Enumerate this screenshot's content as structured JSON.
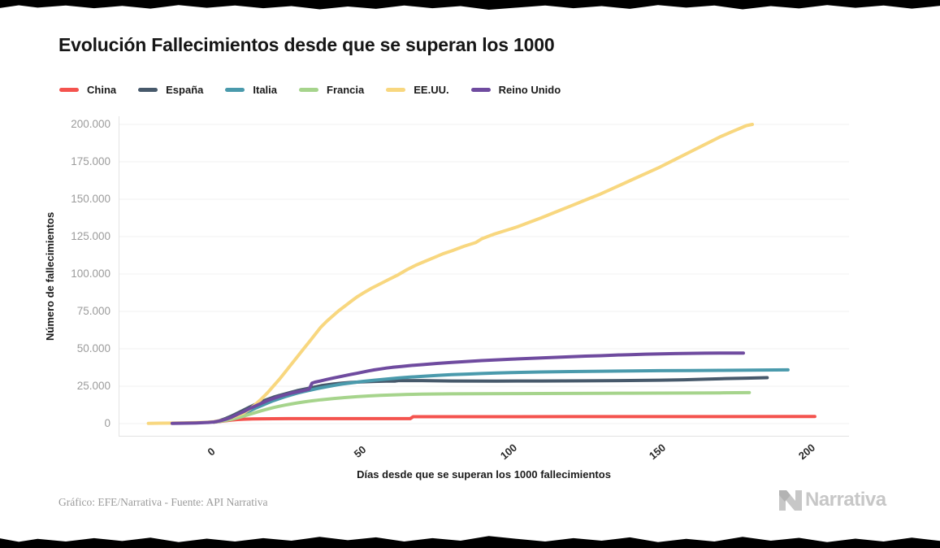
{
  "title": "Evolución Fallecimientos desde que se superan los 1000",
  "credit": "Gráfico: EFE/Narrativa - Fuente: API Narrativa",
  "watermark": "Narrativa",
  "chart_data": {
    "type": "line",
    "title": "Evolución Fallecimientos desde que se superan los 1000",
    "xlabel": "Días desde que se superan los 1000 fallecimientos",
    "ylabel": "Número de fallecimientos",
    "xlim": [
      -32,
      213.5
    ],
    "ylim": [
      0,
      200000
    ],
    "grid": "horizontal-only",
    "legend_position": "top",
    "grid_color": "#f0f0f0",
    "axis_line_color": "#e3e3e3",
    "x_ticks": [
      {
        "value": 0,
        "label": "0"
      },
      {
        "value": 50,
        "label": "50"
      },
      {
        "value": 100,
        "label": "100"
      },
      {
        "value": 150,
        "label": "150"
      },
      {
        "value": 200,
        "label": "200"
      }
    ],
    "y_ticks": [
      {
        "value": 0,
        "label": "0"
      },
      {
        "value": 25000,
        "label": "25.000"
      },
      {
        "value": 50000,
        "label": "50.000"
      },
      {
        "value": 75000,
        "label": "75.000"
      },
      {
        "value": 100000,
        "label": "100.000"
      },
      {
        "value": 125000,
        "label": "125.000"
      },
      {
        "value": 150000,
        "label": "150.000"
      },
      {
        "value": 175000,
        "label": "175.000"
      },
      {
        "value": 200000,
        "label": "200.000"
      }
    ],
    "series": [
      {
        "name": "China",
        "color": "#f4534e",
        "points": [
          [
            0,
            1000
          ],
          [
            2,
            1400
          ],
          [
            4,
            1900
          ],
          [
            6,
            2400
          ],
          [
            8,
            2700
          ],
          [
            10,
            2950
          ],
          [
            13,
            3120
          ],
          [
            16,
            3220
          ],
          [
            20,
            3280
          ],
          [
            25,
            3310
          ],
          [
            30,
            3320
          ],
          [
            40,
            3330
          ],
          [
            55,
            3335
          ],
          [
            66,
            3340
          ],
          [
            67,
            4630
          ],
          [
            90,
            4640
          ],
          [
            120,
            4660
          ],
          [
            160,
            4700
          ],
          [
            202,
            4740
          ]
        ]
      },
      {
        "name": "España",
        "color": "#47596b",
        "points": [
          [
            0,
            1100
          ],
          [
            2,
            2000
          ],
          [
            4,
            3400
          ],
          [
            6,
            5100
          ],
          [
            8,
            7000
          ],
          [
            10,
            9000
          ],
          [
            12,
            11000
          ],
          [
            14,
            12900
          ],
          [
            16,
            14700
          ],
          [
            18,
            16200
          ],
          [
            20,
            17600
          ],
          [
            22,
            18800
          ],
          [
            24,
            19900
          ],
          [
            26,
            21000
          ],
          [
            28,
            22000
          ],
          [
            30,
            22900
          ],
          [
            32,
            23700
          ],
          [
            34,
            24500
          ],
          [
            36,
            25300
          ],
          [
            38,
            25900
          ],
          [
            40,
            26400
          ],
          [
            43,
            27000
          ],
          [
            46,
            27500
          ],
          [
            50,
            27950
          ],
          [
            54,
            28200
          ],
          [
            58,
            28350
          ],
          [
            61,
            28400
          ],
          [
            62,
            28750
          ],
          [
            70,
            28760
          ],
          [
            80,
            28500
          ],
          [
            95,
            28450
          ],
          [
            110,
            28500
          ],
          [
            125,
            28600
          ],
          [
            140,
            28800
          ],
          [
            150,
            29000
          ],
          [
            158,
            29300
          ],
          [
            165,
            29700
          ],
          [
            172,
            30100
          ],
          [
            179,
            30400
          ],
          [
            186,
            30700
          ]
        ]
      },
      {
        "name": "Italia",
        "color": "#4a9aac",
        "points": [
          [
            0,
            1000
          ],
          [
            2,
            1600
          ],
          [
            4,
            2500
          ],
          [
            6,
            3700
          ],
          [
            8,
            5200
          ],
          [
            10,
            6800
          ],
          [
            12,
            8500
          ],
          [
            14,
            10300
          ],
          [
            16,
            12000
          ],
          [
            18,
            13700
          ],
          [
            20,
            15300
          ],
          [
            22,
            16700
          ],
          [
            24,
            18000
          ],
          [
            26,
            19200
          ],
          [
            28,
            20300
          ],
          [
            30,
            21300
          ],
          [
            32,
            22200
          ],
          [
            34,
            23100
          ],
          [
            36,
            23900
          ],
          [
            38,
            24700
          ],
          [
            40,
            25400
          ],
          [
            43,
            26400
          ],
          [
            46,
            27200
          ],
          [
            50,
            28200
          ],
          [
            54,
            29000
          ],
          [
            58,
            29800
          ],
          [
            62,
            30500
          ],
          [
            66,
            31100
          ],
          [
            70,
            31600
          ],
          [
            75,
            32200
          ],
          [
            80,
            32700
          ],
          [
            85,
            33100
          ],
          [
            90,
            33500
          ],
          [
            95,
            33800
          ],
          [
            100,
            34100
          ],
          [
            110,
            34500
          ],
          [
            120,
            34800
          ],
          [
            130,
            35000
          ],
          [
            140,
            35200
          ],
          [
            150,
            35400
          ],
          [
            160,
            35500
          ],
          [
            170,
            35600
          ],
          [
            180,
            35750
          ],
          [
            193,
            35900
          ]
        ]
      },
      {
        "name": "Francia",
        "color": "#a6d48c",
        "points": [
          [
            0,
            1100
          ],
          [
            2,
            1500
          ],
          [
            4,
            2100
          ],
          [
            6,
            2900
          ],
          [
            8,
            3900
          ],
          [
            10,
            5000
          ],
          [
            12,
            6200
          ],
          [
            14,
            7400
          ],
          [
            16,
            8600
          ],
          [
            18,
            9700
          ],
          [
            20,
            10700
          ],
          [
            22,
            11600
          ],
          [
            24,
            12400
          ],
          [
            26,
            13100
          ],
          [
            28,
            13800
          ],
          [
            30,
            14400
          ],
          [
            33,
            15200
          ],
          [
            36,
            15900
          ],
          [
            40,
            16700
          ],
          [
            44,
            17400
          ],
          [
            48,
            18000
          ],
          [
            52,
            18500
          ],
          [
            56,
            18900
          ],
          [
            60,
            19200
          ],
          [
            65,
            19500
          ],
          [
            70,
            19700
          ],
          [
            80,
            19900
          ],
          [
            90,
            20000
          ],
          [
            100,
            20050
          ],
          [
            110,
            20100
          ],
          [
            120,
            20150
          ],
          [
            130,
            20250
          ],
          [
            140,
            20350
          ],
          [
            150,
            20400
          ],
          [
            160,
            20450
          ],
          [
            170,
            20550
          ],
          [
            180,
            20700
          ]
        ]
      },
      {
        "name": "EE.UU.",
        "color": "#f8d77f",
        "points": [
          [
            -22,
            150
          ],
          [
            -18,
            250
          ],
          [
            -14,
            350
          ],
          [
            -10,
            500
          ],
          [
            -6,
            700
          ],
          [
            -2,
            950
          ],
          [
            0,
            1300
          ],
          [
            2,
            1900
          ],
          [
            4,
            2800
          ],
          [
            6,
            4000
          ],
          [
            8,
            5500
          ],
          [
            10,
            7100
          ],
          [
            12,
            9600
          ],
          [
            14,
            12800
          ],
          [
            16,
            16500
          ],
          [
            18,
            20500
          ],
          [
            20,
            25000
          ],
          [
            22,
            29500
          ],
          [
            24,
            34500
          ],
          [
            26,
            39500
          ],
          [
            28,
            44500
          ],
          [
            30,
            49500
          ],
          [
            32,
            54500
          ],
          [
            34,
            59500
          ],
          [
            36,
            64500
          ],
          [
            38,
            68500
          ],
          [
            40,
            72000
          ],
          [
            42,
            75500
          ],
          [
            44,
            78500
          ],
          [
            46,
            81500
          ],
          [
            48,
            84500
          ],
          [
            50,
            87000
          ],
          [
            53,
            90500
          ],
          [
            56,
            93500
          ],
          [
            59,
            96500
          ],
          [
            62,
            99500
          ],
          [
            65,
            103000
          ],
          [
            68,
            106000
          ],
          [
            71,
            108500
          ],
          [
            74,
            111000
          ],
          [
            77,
            113500
          ],
          [
            80,
            115500
          ],
          [
            84,
            118500
          ],
          [
            88,
            121000
          ],
          [
            90,
            123500
          ],
          [
            94,
            126500
          ],
          [
            98,
            129000
          ],
          [
            102,
            131500
          ],
          [
            106,
            134500
          ],
          [
            110,
            137500
          ],
          [
            115,
            141500
          ],
          [
            120,
            145500
          ],
          [
            125,
            149500
          ],
          [
            130,
            153500
          ],
          [
            135,
            158000
          ],
          [
            140,
            162500
          ],
          [
            145,
            167000
          ],
          [
            150,
            171500
          ],
          [
            155,
            176500
          ],
          [
            160,
            181500
          ],
          [
            165,
            186500
          ],
          [
            170,
            191500
          ],
          [
            174,
            195000
          ],
          [
            177,
            197500
          ],
          [
            179,
            199200
          ],
          [
            181,
            200000
          ]
        ]
      },
      {
        "name": "Reino Unido",
        "color": "#6f4b9f",
        "points": [
          [
            -14,
            150
          ],
          [
            -10,
            250
          ],
          [
            -6,
            450
          ],
          [
            -2,
            750
          ],
          [
            0,
            1100
          ],
          [
            2,
            1800
          ],
          [
            4,
            2900
          ],
          [
            6,
            4300
          ],
          [
            8,
            6200
          ],
          [
            10,
            8000
          ],
          [
            12,
            10000
          ],
          [
            14,
            11800
          ],
          [
            16,
            13600
          ],
          [
            18,
            15300
          ],
          [
            20,
            16800
          ],
          [
            22,
            18100
          ],
          [
            24,
            19300
          ],
          [
            26,
            20300
          ],
          [
            28,
            21200
          ],
          [
            30,
            22000
          ],
          [
            32,
            23000
          ],
          [
            33,
            27000
          ],
          [
            34,
            27700
          ],
          [
            36,
            28600
          ],
          [
            38,
            29500
          ],
          [
            40,
            30400
          ],
          [
            42,
            31200
          ],
          [
            44,
            32000
          ],
          [
            46,
            32800
          ],
          [
            48,
            33600
          ],
          [
            50,
            34400
          ],
          [
            52,
            35200
          ],
          [
            54,
            35900
          ],
          [
            56,
            36500
          ],
          [
            58,
            37100
          ],
          [
            60,
            37600
          ],
          [
            63,
            38200
          ],
          [
            66,
            38800
          ],
          [
            70,
            39400
          ],
          [
            75,
            40200
          ],
          [
            80,
            40900
          ],
          [
            85,
            41500
          ],
          [
            90,
            42100
          ],
          [
            95,
            42600
          ],
          [
            100,
            43100
          ],
          [
            105,
            43500
          ],
          [
            110,
            43900
          ],
          [
            115,
            44300
          ],
          [
            120,
            44700
          ],
          [
            125,
            45100
          ],
          [
            130,
            45400
          ],
          [
            135,
            45800
          ],
          [
            140,
            46100
          ],
          [
            145,
            46400
          ],
          [
            150,
            46600
          ],
          [
            155,
            46800
          ],
          [
            160,
            46950
          ],
          [
            165,
            47050
          ],
          [
            170,
            47100
          ],
          [
            178,
            47150
          ]
        ]
      }
    ]
  }
}
